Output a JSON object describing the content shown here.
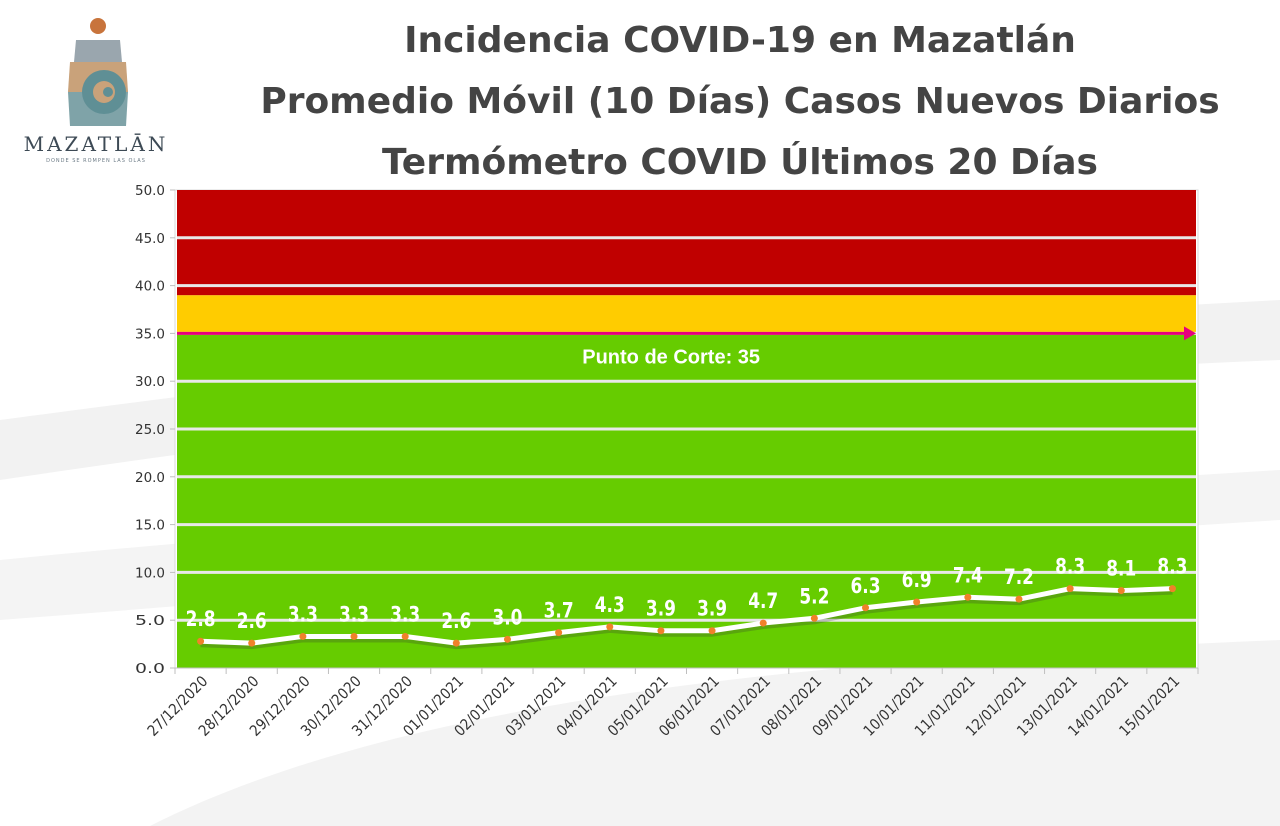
{
  "logo": {
    "name": "MAZATLĀN",
    "tagline": "DONDE SE ROMPEN LAS OLAS"
  },
  "titles": {
    "line1": "Incidencia COVID-19 en Mazatlán",
    "line2": "Promedio Móvil (10 Días) Casos Nuevos Diarios",
    "line3": "Termómetro COVID Últimos 20 Días"
  },
  "chart_data": {
    "type": "line",
    "categories": [
      "27/12/2020",
      "28/12/2020",
      "29/12/2020",
      "30/12/2020",
      "31/12/2020",
      "01/01/2021",
      "02/01/2021",
      "03/01/2021",
      "04/01/2021",
      "05/01/2021",
      "06/01/2021",
      "07/01/2021",
      "08/01/2021",
      "09/01/2021",
      "10/01/2021",
      "11/01/2021",
      "12/01/2021",
      "13/01/2021",
      "14/01/2021",
      "15/01/2021"
    ],
    "values": [
      2.8,
      2.6,
      3.3,
      3.3,
      3.3,
      2.6,
      3.0,
      3.7,
      4.3,
      3.9,
      3.9,
      4.7,
      5.2,
      6.3,
      6.9,
      7.4,
      7.2,
      8.3,
      8.1,
      8.3
    ],
    "value_labels": [
      "2.8",
      "2.6",
      "3.3",
      "3.3",
      "3.3",
      "2.6",
      "3.0",
      "3.7",
      "4.3",
      "3.9",
      "3.9",
      "4.7",
      "5.2",
      "6.3",
      "6.9",
      "7.4",
      "7.2",
      "8.3",
      "8.1",
      "8.3"
    ],
    "ylim": [
      0,
      50
    ],
    "yticks": [
      "0.0",
      "5.0",
      "10.0",
      "15.0",
      "20.0",
      "25.0",
      "30.0",
      "35.0",
      "40.0",
      "45.0",
      "50.0"
    ],
    "grid": true,
    "bands": [
      {
        "from": 0,
        "to": 35,
        "color": "#66cc00"
      },
      {
        "from": 35,
        "to": 39,
        "color": "#ffcc00"
      },
      {
        "from": 39,
        "to": 50,
        "color": "#c00000"
      }
    ],
    "threshold": {
      "value": 35,
      "label": "Punto de Corte: 35",
      "color": "#e6007e"
    },
    "line_color": "#ffffff",
    "marker_color": "#f0812a"
  }
}
